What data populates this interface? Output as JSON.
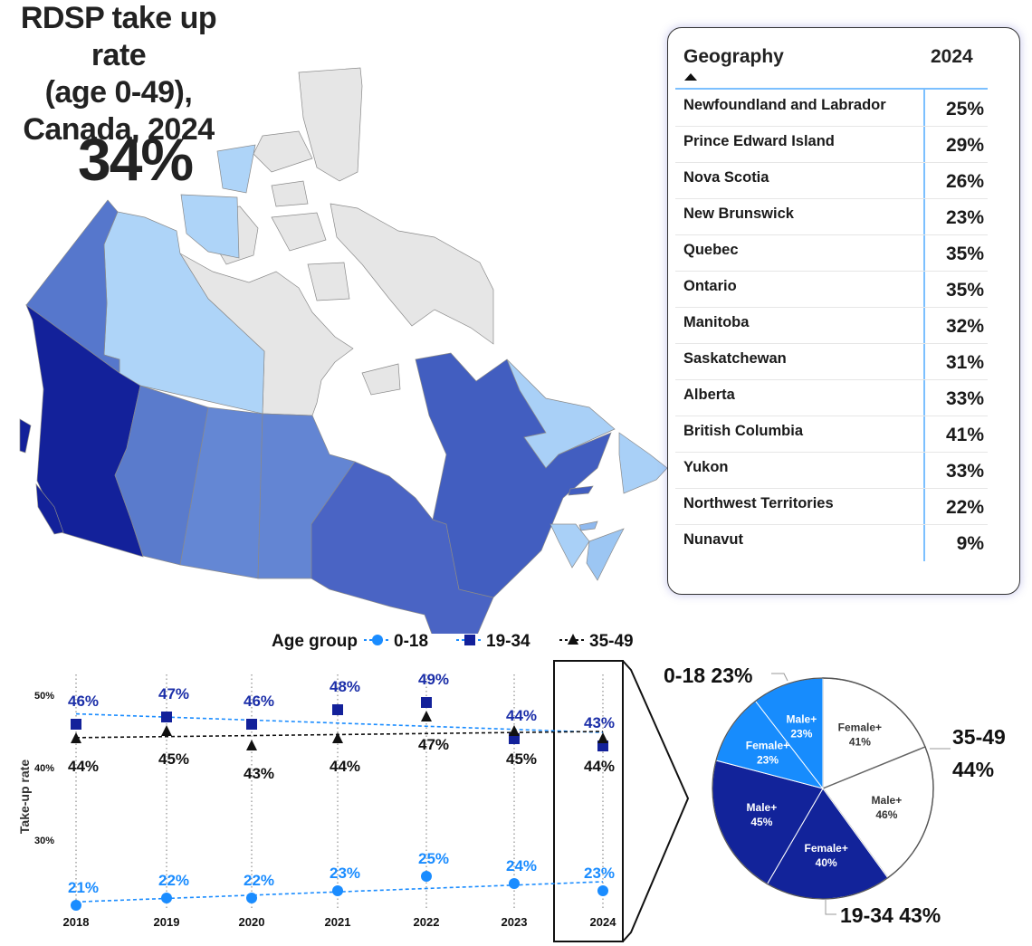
{
  "header": {
    "title_lines": [
      "RDSP take up rate",
      "(age 0-49),",
      "Canada, 2024"
    ],
    "kpi": "34%"
  },
  "map": {
    "regions": [
      {
        "name": "British Columbia",
        "value": "41%",
        "color": "#13219a"
      },
      {
        "name": "Yukon",
        "value": "33%",
        "color": "#5677cc"
      },
      {
        "name": "Northwest Territories",
        "value": "22%",
        "color": "#aed4f8"
      },
      {
        "name": "Nunavut",
        "value": "9%",
        "color": "#e6e6e6"
      },
      {
        "name": "Alberta",
        "value": "33%",
        "color": "#5a7bcc"
      },
      {
        "name": "Saskatchewan",
        "value": "31%",
        "color": "#6487d4"
      },
      {
        "name": "Manitoba",
        "value": "32%",
        "color": "#6385d3"
      },
      {
        "name": "Ontario",
        "value": "35%",
        "color": "#4a64c4"
      },
      {
        "name": "Quebec",
        "value": "35%",
        "color": "#425ec0"
      },
      {
        "name": "Newfoundland and Labrador",
        "value": "25%",
        "color": "#a9d0f7"
      },
      {
        "name": "New Brunswick",
        "value": "23%",
        "color": "#a9d0f7"
      },
      {
        "name": "Nova Scotia",
        "value": "26%",
        "color": "#9cc6f3"
      },
      {
        "name": "Prince Edward Island",
        "value": "29%",
        "color": "#8fb9ee"
      }
    ]
  },
  "table": {
    "col_geo": "Geography",
    "col_year": "2024",
    "sort": "ascending",
    "rows": [
      {
        "name": "Newfoundland and Labrador",
        "value": "25%"
      },
      {
        "name": "Prince Edward Island",
        "value": "29%"
      },
      {
        "name": "Nova Scotia",
        "value": "26%"
      },
      {
        "name": "New Brunswick",
        "value": "23%"
      },
      {
        "name": "Quebec",
        "value": "35%"
      },
      {
        "name": "Ontario",
        "value": "35%"
      },
      {
        "name": "Manitoba",
        "value": "32%"
      },
      {
        "name": "Saskatchewan",
        "value": "31%"
      },
      {
        "name": "Alberta",
        "value": "33%"
      },
      {
        "name": "British Columbia",
        "value": "41%"
      },
      {
        "name": "Yukon",
        "value": "33%"
      },
      {
        "name": "Northwest Territories",
        "value": "22%"
      },
      {
        "name": "Nunavut",
        "value": "9%"
      }
    ]
  },
  "chart_data": [
    {
      "type": "line",
      "legend_title": "Age group",
      "legend_position": "top",
      "ylabel": "Take-up rate",
      "x": [
        "2018",
        "2019",
        "2020",
        "2021",
        "2022",
        "2023",
        "2024"
      ],
      "yticks": [
        "30%",
        "40%",
        "50%"
      ],
      "ylim": [
        19,
        54
      ],
      "grid": "vertical dotted",
      "trendlines": true,
      "highlight": "2024",
      "series": [
        {
          "name": "0-18",
          "marker": "circle",
          "color": "#1a8cff",
          "values": [
            21,
            22,
            22,
            23,
            25,
            24,
            23
          ],
          "labels": [
            "21%",
            "22%",
            "22%",
            "23%",
            "25%",
            "24%",
            "23%"
          ]
        },
        {
          "name": "19-34",
          "marker": "square",
          "color": "#13219a",
          "values": [
            46,
            47,
            46,
            48,
            49,
            44,
            43
          ],
          "labels": [
            "46%",
            "47%",
            "46%",
            "48%",
            "49%",
            "44%",
            "43%"
          ]
        },
        {
          "name": "35-49",
          "marker": "triangle",
          "color": "#111111",
          "values": [
            44,
            45,
            43,
            44,
            47,
            45,
            44
          ],
          "labels": [
            "44%",
            "45%",
            "43%",
            "44%",
            "47%",
            "45%",
            "44%"
          ]
        }
      ]
    },
    {
      "type": "pie",
      "year": "2024",
      "groups": [
        {
          "name": "35-49",
          "value": 44,
          "label": "35-49",
          "value_label": "44%",
          "color": "#ffffff",
          "text_color": "#333333",
          "slices": [
            {
              "name": "Female+",
              "value": 41,
              "label": "41%"
            },
            {
              "name": "Male+",
              "value": 46,
              "label": "46%"
            }
          ]
        },
        {
          "name": "19-34",
          "value": 43,
          "label": "19-34 43%",
          "color": "#12239a",
          "text_color": "#ffffff",
          "slices": [
            {
              "name": "Female+",
              "value": 40,
              "label": "40%"
            },
            {
              "name": "Male+",
              "value": 45,
              "label": "45%"
            }
          ]
        },
        {
          "name": "0-18",
          "value": 23,
          "label": "0-18 23%",
          "color": "#178cfd",
          "text_color": "#ffffff",
          "slices": [
            {
              "name": "Female+",
              "value": 23,
              "label": "23%"
            },
            {
              "name": "Male+",
              "value": 23,
              "label": "23%"
            }
          ]
        }
      ]
    }
  ]
}
